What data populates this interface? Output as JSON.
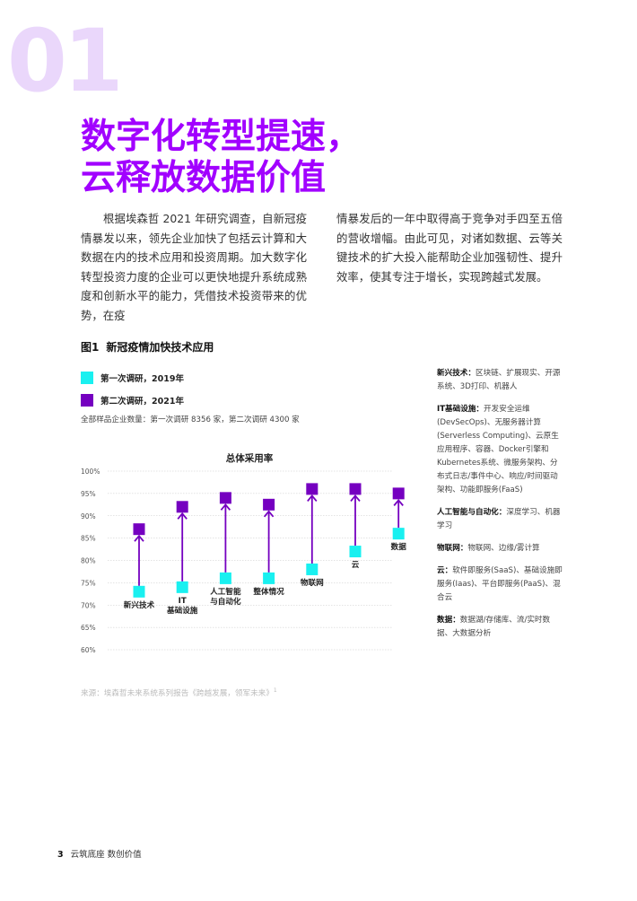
{
  "section_number": "01",
  "title_lines": [
    "数字化转型提速，",
    "云释放数据价值"
  ],
  "intro_left": "根据埃森哲 2021 年研究调查，自新冠疫情暴发以来，领先企业加快了包括云计算和大数据在内的技术应用和投资周期。加大数字化转型投资力度的企业可以更快地提升系统成熟度和创新水平的能力，凭借技术投资带来的优势，在疫",
  "intro_right": "情暴发后的一年中取得高于竞争对手四至五倍的营收增幅。由此可见，对诸如数据、云等关键技术的扩大投入能帮助企业加强韧性、提升效率，使其专注于增长，实现跨越式发展。",
  "figure": {
    "number": "图1",
    "title": "新冠疫情加快技术应用",
    "legend": [
      {
        "label": "第一次调研，2019年",
        "color": "#19f0f0"
      },
      {
        "label": "第二次调研，2021年",
        "color": "#7500c0"
      }
    ],
    "sample_note": "全部样品企业数量：第一次调研 8356 家，第二次调研 4300 家",
    "source": "来源：埃森哲未来系统系列报告《跨越发展，领军未来》",
    "source_ref": "1"
  },
  "chart_data": {
    "type": "dot-arrow",
    "title": "总体采用率",
    "ylim": [
      60,
      100
    ],
    "y_ticks": [
      "100%",
      "95%",
      "90%",
      "85%",
      "80%",
      "75%",
      "70%",
      "65%",
      "60%"
    ],
    "y_tick_values": [
      100,
      95,
      90,
      85,
      80,
      75,
      70,
      65,
      60
    ],
    "categories": [
      {
        "label": [
          "新兴技术"
        ],
        "label_pos": "below"
      },
      {
        "label": [
          "IT",
          "基础设施"
        ],
        "label_pos": "below"
      },
      {
        "label": [
          "人工智能",
          "与自动化"
        ],
        "label_pos": "below"
      },
      {
        "label": [
          "整体情况"
        ],
        "label_pos": "below"
      },
      {
        "label": [
          "物联网"
        ],
        "label_pos": "below"
      },
      {
        "label": [
          "云"
        ],
        "label_pos": "below"
      },
      {
        "label": [
          "数据"
        ],
        "label_pos": "below"
      }
    ],
    "series": [
      {
        "name": "第一次调研，2019年",
        "color": "#19f0f0",
        "values": [
          73,
          74,
          76,
          76,
          78,
          82,
          86
        ]
      },
      {
        "name": "第二次调研，2021年",
        "color": "#7500c0",
        "values": [
          87,
          92,
          94,
          92.5,
          96,
          96,
          95
        ]
      }
    ],
    "arrow_color": "#7500c0"
  },
  "glossary": [
    {
      "term": "新兴技术：",
      "text": "区块链、扩展现实、开源系统、3D打印、机器人"
    },
    {
      "term": "IT基础设施：",
      "text": "开发安全运维(DevSecOps)、无服务器计算(Serverless Computing)、云原生应用程序、容器、Docker引擎和Kubernetes系统、微服务架构、分布式日志/事件中心、响应/时间驱动架构、功能即服务(FaaS)"
    },
    {
      "term": "人工智能与自动化：",
      "text": "深度学习、机器学习"
    },
    {
      "term": "物联网：",
      "text": "物联网、边缘/雾计算"
    },
    {
      "term": "云：",
      "text": "软件即服务(SaaS)、基础设施即服务(Iaas)、平台即服务(PaaS)、混合云"
    },
    {
      "term": "数据：",
      "text": "数据湖/存储库、流/实时数据、大数据分析"
    }
  ],
  "footer": {
    "page": "3",
    "text": "云筑底座 数创价值"
  }
}
